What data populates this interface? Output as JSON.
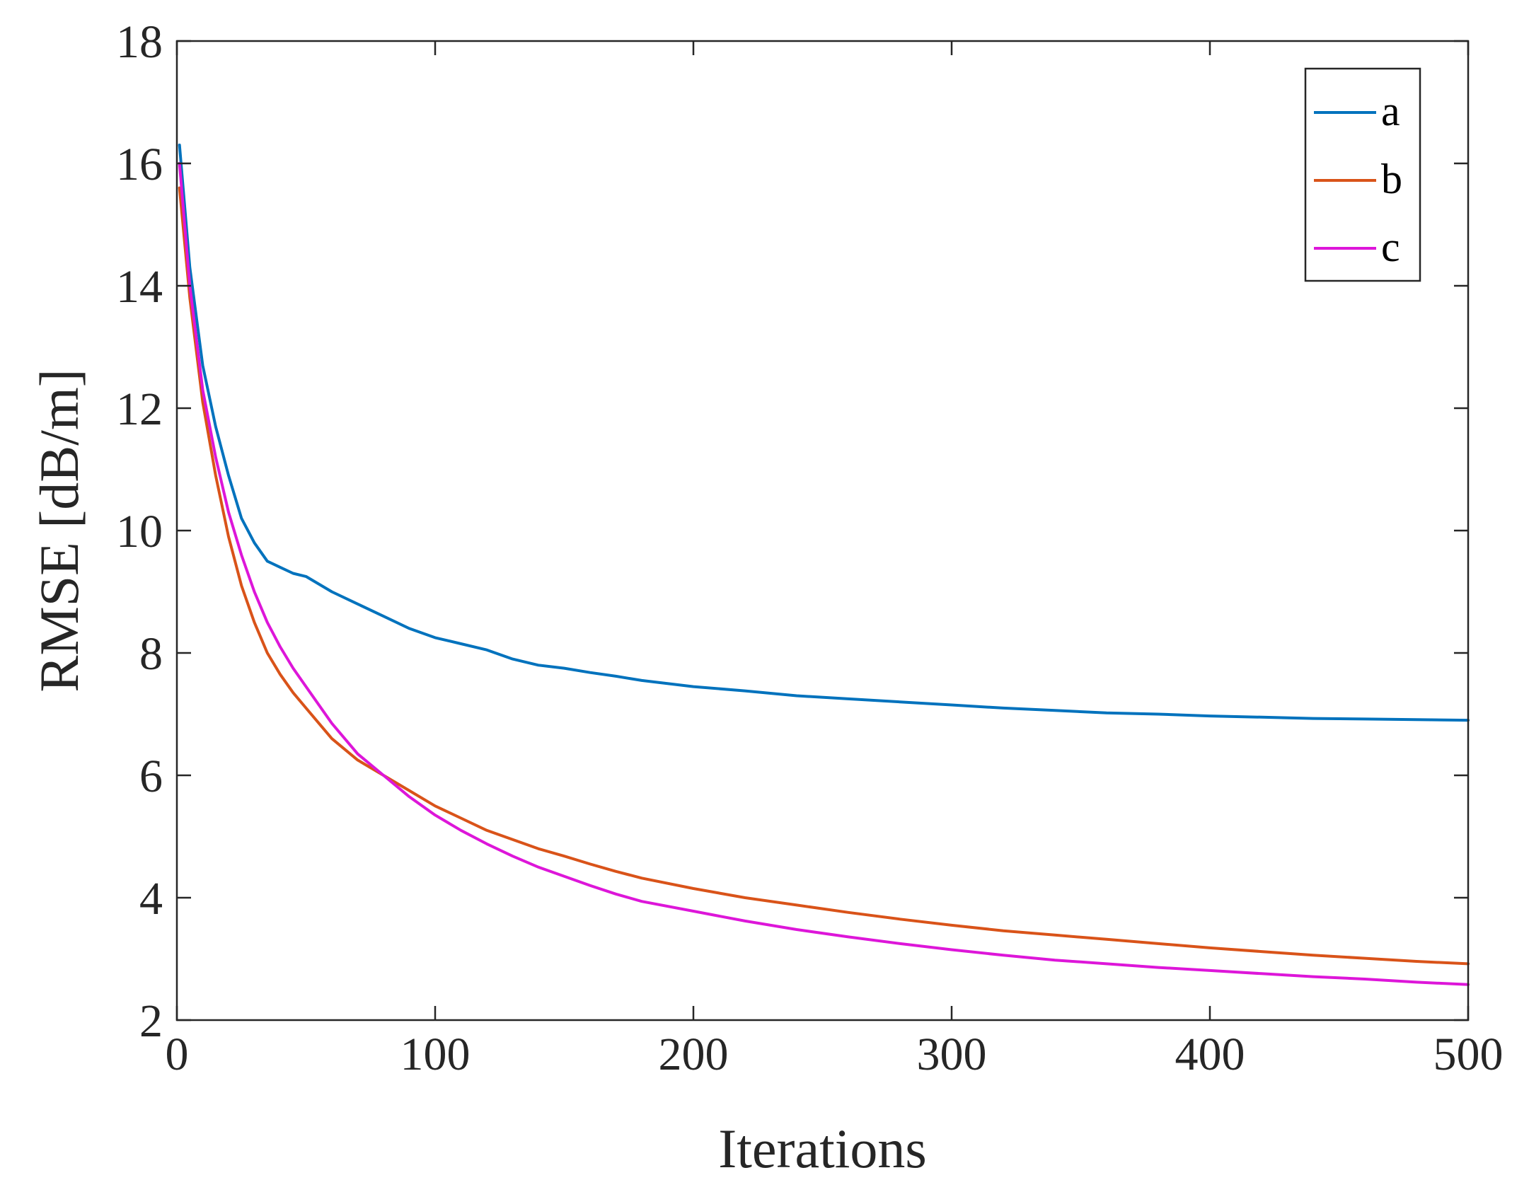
{
  "chart_data": {
    "type": "line",
    "title": "",
    "xlabel": "Iterations",
    "ylabel": "RMSE [dB/m]",
    "xlim": [
      0,
      500
    ],
    "ylim": [
      2,
      18
    ],
    "xticks": [
      0,
      100,
      200,
      300,
      400,
      500
    ],
    "yticks": [
      2,
      4,
      6,
      8,
      10,
      12,
      14,
      16,
      18
    ],
    "grid": false,
    "legend_position": "top-right",
    "series": [
      {
        "name": "a",
        "color": "#0072BD",
        "x": [
          1,
          5,
          10,
          15,
          20,
          25,
          30,
          35,
          40,
          45,
          50,
          60,
          70,
          80,
          90,
          100,
          110,
          120,
          130,
          140,
          150,
          160,
          170,
          180,
          200,
          220,
          240,
          260,
          280,
          300,
          320,
          340,
          360,
          380,
          400,
          420,
          440,
          460,
          480,
          500
        ],
        "values": [
          16.3,
          14.3,
          12.7,
          11.7,
          10.9,
          10.2,
          9.8,
          9.5,
          9.4,
          9.3,
          9.25,
          9.0,
          8.8,
          8.6,
          8.4,
          8.25,
          8.15,
          8.05,
          7.9,
          7.8,
          7.75,
          7.68,
          7.62,
          7.55,
          7.45,
          7.38,
          7.3,
          7.25,
          7.2,
          7.15,
          7.1,
          7.06,
          7.02,
          7.0,
          6.97,
          6.95,
          6.93,
          6.92,
          6.91,
          6.9
        ]
      },
      {
        "name": "b",
        "color": "#D95319",
        "x": [
          1,
          5,
          10,
          15,
          20,
          25,
          30,
          35,
          40,
          45,
          50,
          60,
          70,
          80,
          90,
          100,
          110,
          120,
          130,
          140,
          150,
          160,
          170,
          180,
          200,
          220,
          240,
          260,
          280,
          300,
          320,
          340,
          360,
          380,
          400,
          420,
          440,
          460,
          480,
          500
        ],
        "values": [
          15.6,
          13.8,
          12.1,
          10.9,
          9.9,
          9.1,
          8.5,
          8.0,
          7.65,
          7.35,
          7.1,
          6.6,
          6.25,
          6.0,
          5.75,
          5.5,
          5.3,
          5.1,
          4.95,
          4.8,
          4.68,
          4.55,
          4.43,
          4.32,
          4.15,
          4.0,
          3.88,
          3.76,
          3.65,
          3.55,
          3.46,
          3.39,
          3.32,
          3.25,
          3.18,
          3.12,
          3.06,
          3.01,
          2.96,
          2.92
        ]
      },
      {
        "name": "c",
        "color": "#DD16D9",
        "x": [
          1,
          5,
          10,
          15,
          20,
          25,
          30,
          35,
          40,
          45,
          50,
          60,
          70,
          80,
          90,
          100,
          110,
          120,
          130,
          140,
          150,
          160,
          170,
          180,
          200,
          220,
          240,
          260,
          280,
          300,
          320,
          340,
          360,
          380,
          400,
          420,
          440,
          460,
          480,
          500
        ],
        "values": [
          16.0,
          14.0,
          12.3,
          11.2,
          10.3,
          9.6,
          9.0,
          8.5,
          8.1,
          7.75,
          7.45,
          6.85,
          6.35,
          6.0,
          5.65,
          5.35,
          5.1,
          4.88,
          4.68,
          4.5,
          4.35,
          4.2,
          4.06,
          3.94,
          3.78,
          3.62,
          3.48,
          3.36,
          3.25,
          3.15,
          3.06,
          2.98,
          2.92,
          2.86,
          2.81,
          2.76,
          2.71,
          2.67,
          2.62,
          2.58
        ]
      }
    ]
  }
}
